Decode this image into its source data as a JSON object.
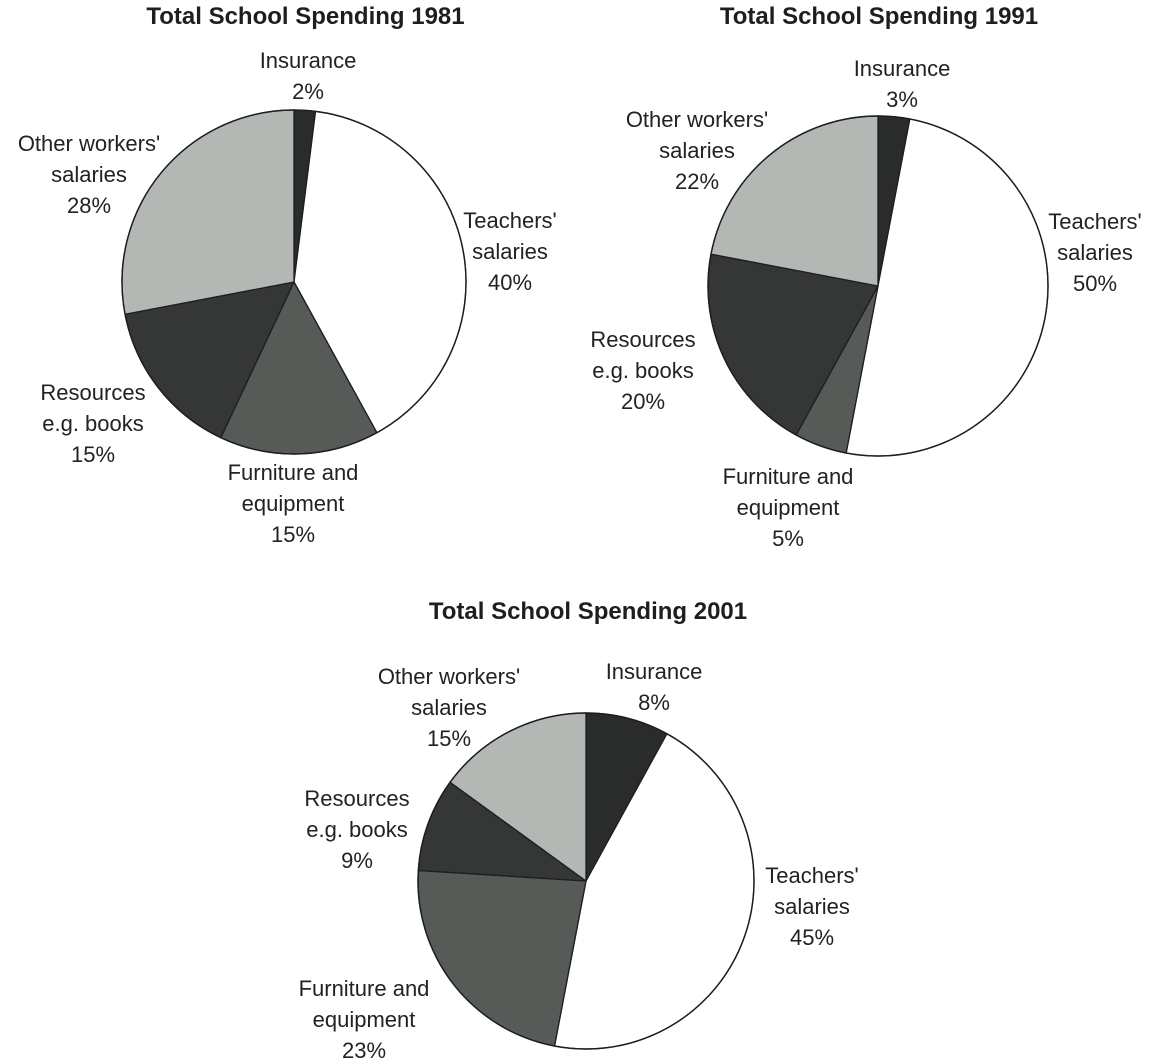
{
  "chart_data": [
    {
      "type": "pie",
      "title": "Total School Spending 1981",
      "slices": [
        {
          "name": "Insurance",
          "label": [
            "Insurance",
            "2%"
          ],
          "value": 2,
          "color": "#2a2c2b"
        },
        {
          "name": "Teachers' salaries",
          "label": [
            "Teachers'",
            "salaries",
            "40%"
          ],
          "value": 40,
          "color": "#ffffff"
        },
        {
          "name": "Furniture and equipment",
          "label": [
            "Furniture and",
            "equipment",
            "15%"
          ],
          "value": 15,
          "color": "#575b58"
        },
        {
          "name": "Resources e.g. books",
          "label": [
            "Resources",
            "e.g. books",
            "15%"
          ],
          "value": 15,
          "color": "#343735"
        },
        {
          "name": "Other workers' salaries",
          "label": [
            "Other workers'",
            "salaries",
            "28%"
          ],
          "value": 28,
          "color": "#b4b8b5"
        }
      ]
    },
    {
      "type": "pie",
      "title": "Total School Spending 1991",
      "slices": [
        {
          "name": "Insurance",
          "label": [
            "Insurance",
            "3%"
          ],
          "value": 3,
          "color": "#2a2c2b"
        },
        {
          "name": "Teachers' salaries",
          "label": [
            "Teachers'",
            "salaries",
            "50%"
          ],
          "value": 50,
          "color": "#ffffff"
        },
        {
          "name": "Furniture and equipment",
          "label": [
            "Furniture and",
            "equipment",
            "5%"
          ],
          "value": 5,
          "color": "#575b58"
        },
        {
          "name": "Resources e.g. books",
          "label": [
            "Resources",
            "e.g. books",
            "20%"
          ],
          "value": 20,
          "color": "#343735"
        },
        {
          "name": "Other workers' salaries",
          "label": [
            "Other workers'",
            "salaries",
            "22%"
          ],
          "value": 22,
          "color": "#b4b8b5"
        }
      ]
    },
    {
      "type": "pie",
      "title": "Total School Spending 2001",
      "slices": [
        {
          "name": "Insurance",
          "label": [
            "Insurance",
            "8%"
          ],
          "value": 8,
          "color": "#2a2c2b"
        },
        {
          "name": "Teachers' salaries",
          "label": [
            "Teachers'",
            "salaries",
            "45%"
          ],
          "value": 45,
          "color": "#ffffff"
        },
        {
          "name": "Furniture and equipment",
          "label": [
            "Furniture and",
            "equipment",
            "23%"
          ],
          "value": 23,
          "color": "#575b58"
        },
        {
          "name": "Resources e.g. books",
          "label": [
            "Resources",
            "e.g. books",
            "9%"
          ],
          "value": 9,
          "color": "#343735"
        },
        {
          "name": "Other workers' salaries",
          "label": [
            "Other workers'",
            "salaries",
            "15%"
          ],
          "value": 15,
          "color": "#b4b8b5"
        }
      ]
    }
  ]
}
